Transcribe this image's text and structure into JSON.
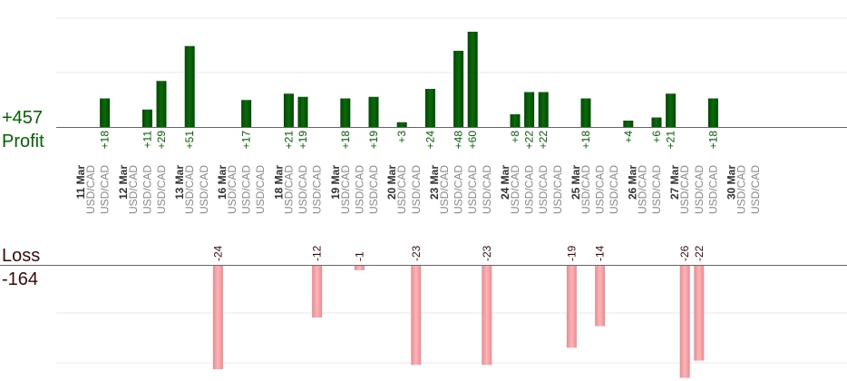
{
  "summary": {
    "profit_total": "+457",
    "profit_label": "Profit",
    "loss_label": "Loss",
    "loss_total": "-164"
  },
  "colors": {
    "profit_bar": "#0b6a0b",
    "profit_bar_dark": "#004a00",
    "profit_text": "#006400",
    "loss_bar": "#ffb3b6",
    "loss_bar_edge": "#e88c90",
    "loss_text": "#3a0a0a",
    "date_text": "#333333",
    "pair_text": "#888888",
    "axis": "#666666",
    "grid": "#e8e8e8"
  },
  "chart_data": {
    "type": "bar",
    "pair": "USD/CAD",
    "dates": [
      {
        "date": "11 Mar",
        "pairs": 2
      },
      {
        "date": "12 Mar",
        "pairs": 3
      },
      {
        "date": "13 Mar",
        "pairs": 2
      },
      {
        "date": "16 Mar",
        "pairs": 3
      },
      {
        "date": "18 Mar",
        "pairs": 3
      },
      {
        "date": "19 Mar",
        "pairs": 3
      },
      {
        "date": "20 Mar",
        "pairs": 2
      },
      {
        "date": "23 Mar",
        "pairs": 4
      },
      {
        "date": "24 Mar",
        "pairs": 4
      },
      {
        "date": "25 Mar",
        "pairs": 3
      },
      {
        "date": "26 Mar",
        "pairs": 2
      },
      {
        "date": "27 Mar",
        "pairs": 3
      },
      {
        "date": "30 Mar",
        "pairs": 2
      }
    ],
    "profit": [
      {
        "slot": 1,
        "value": 18,
        "label": "+18"
      },
      {
        "slot": 4,
        "value": 11,
        "label": "+11"
      },
      {
        "slot": 5,
        "value": 29,
        "label": "+29"
      },
      {
        "slot": 7,
        "value": 51,
        "label": "+51"
      },
      {
        "slot": 11,
        "value": 17,
        "label": "+17"
      },
      {
        "slot": 14,
        "value": 21,
        "label": "+21"
      },
      {
        "slot": 15,
        "value": 19,
        "label": "+19"
      },
      {
        "slot": 18,
        "value": 18,
        "label": "+18"
      },
      {
        "slot": 20,
        "value": 19,
        "label": "+19"
      },
      {
        "slot": 22,
        "value": 3,
        "label": "+3"
      },
      {
        "slot": 24,
        "value": 24,
        "label": "+24"
      },
      {
        "slot": 26,
        "value": 48,
        "label": "+48"
      },
      {
        "slot": 27,
        "value": 60,
        "label": "+60"
      },
      {
        "slot": 30,
        "value": 8,
        "label": "+8"
      },
      {
        "slot": 31,
        "value": 22,
        "label": "+22"
      },
      {
        "slot": 32,
        "value": 22,
        "label": "+22"
      },
      {
        "slot": 35,
        "value": 18,
        "label": "+18"
      },
      {
        "slot": 38,
        "value": 4,
        "label": "+4"
      },
      {
        "slot": 40,
        "value": 6,
        "label": "+6"
      },
      {
        "slot": 41,
        "value": 21,
        "label": "+21"
      },
      {
        "slot": 44,
        "value": 18,
        "label": "+18"
      }
    ],
    "loss": [
      {
        "slot": 9,
        "value": -24,
        "label": "-24"
      },
      {
        "slot": 16,
        "value": -12,
        "label": "-12"
      },
      {
        "slot": 19,
        "value": -1,
        "label": "-1"
      },
      {
        "slot": 23,
        "value": -23,
        "label": "-23"
      },
      {
        "slot": 28,
        "value": -23,
        "label": "-23"
      },
      {
        "slot": 34,
        "value": -19,
        "label": "-19"
      },
      {
        "slot": 36,
        "value": -14,
        "label": "-14"
      },
      {
        "slot": 42,
        "value": -26,
        "label": "-26"
      },
      {
        "slot": 43,
        "value": -22,
        "label": "-22"
      }
    ]
  }
}
